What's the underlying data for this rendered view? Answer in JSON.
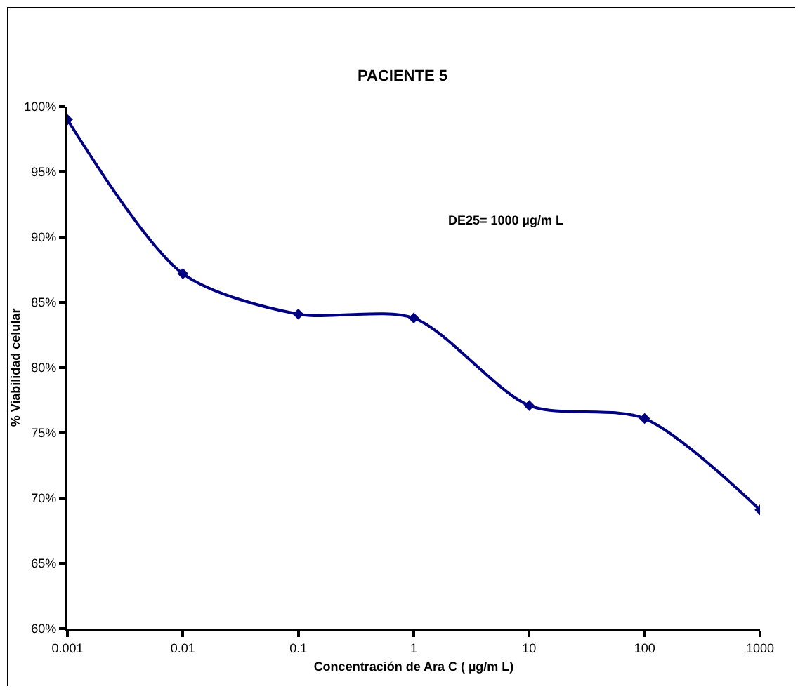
{
  "chart_data": {
    "type": "line",
    "title": "PACIENTE 5",
    "xlabel": "Concentración de Ara C ( µg/m L)",
    "ylabel": "% Viabilidad celular",
    "annotations": [
      "DE25= 1000 µg/m L"
    ],
    "x": [
      0.001,
      0.01,
      0.1,
      1,
      10,
      100,
      1000
    ],
    "series": [
      {
        "color": "#000080",
        "values": [
          99,
          87.2,
          84.1,
          83.8,
          77.1,
          76.1,
          69.1
        ]
      }
    ],
    "log": "x",
    "xlim": [
      0.001,
      1000
    ],
    "xticks": [
      0.001,
      0.01,
      0.1,
      1,
      10,
      100,
      1000
    ],
    "ylim": [
      60,
      100
    ],
    "yticks": [
      {
        "value": 60,
        "label": "60%"
      },
      {
        "value": 65,
        "label": "65%"
      },
      {
        "value": 70,
        "label": "70%"
      },
      {
        "value": 75,
        "label": "75%"
      },
      {
        "value": 80,
        "label": "80%"
      },
      {
        "value": 85,
        "label": "85%"
      },
      {
        "value": 90,
        "label": "90%"
      },
      {
        "value": 95,
        "label": "95%"
      },
      {
        "value": 100,
        "label": "100%"
      }
    ],
    "grid": false,
    "marker": "diamond",
    "line_style": "solid"
  }
}
